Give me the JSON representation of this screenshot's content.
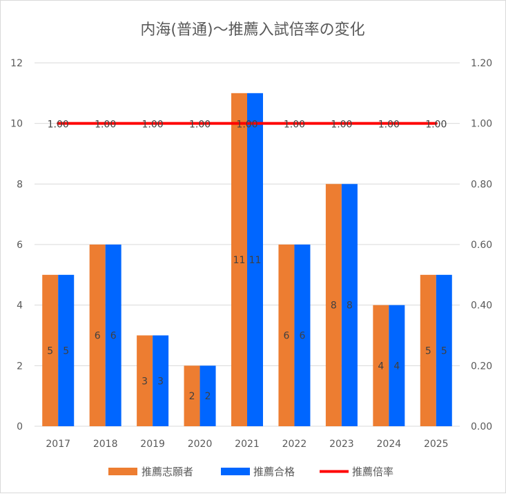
{
  "chart_data": {
    "type": "bar",
    "title": "内海(普通)〜推薦入試倍率の変化",
    "categories": [
      "2017",
      "2018",
      "2019",
      "2020",
      "2021",
      "2022",
      "2023",
      "2024",
      "2025"
    ],
    "series": [
      {
        "name": "推薦志願者",
        "kind": "bar",
        "axis": "left",
        "color": "#ED7D31",
        "values": [
          5,
          6,
          3,
          2,
          11,
          6,
          8,
          4,
          5
        ]
      },
      {
        "name": "推薦合格",
        "kind": "bar",
        "axis": "left",
        "color": "#0066FF",
        "values": [
          5,
          6,
          3,
          2,
          11,
          6,
          8,
          4,
          5
        ]
      },
      {
        "name": "推薦倍率",
        "kind": "line",
        "axis": "right",
        "color": "#FF0000",
        "values": [
          1.0,
          1.0,
          1.0,
          1.0,
          1.0,
          1.0,
          1.0,
          1.0,
          1.0
        ]
      }
    ],
    "bar_labels": [
      [
        "5",
        "6",
        "3",
        "2",
        "11",
        "6",
        "8",
        "4",
        "5"
      ],
      [
        "5",
        "6",
        "3",
        "2",
        "11",
        "6",
        "8",
        "4",
        "5"
      ]
    ],
    "line_labels": [
      "1.00",
      "1.00",
      "1.00",
      "1.00",
      "1.00",
      "1.00",
      "1.00",
      "1.00",
      "1.00"
    ],
    "ylim_left": [
      0,
      12
    ],
    "ylim_right": [
      0,
      1.2
    ],
    "yticks_left": [
      "0",
      "2",
      "4",
      "6",
      "8",
      "10",
      "12"
    ],
    "yticks_right": [
      "0.00",
      "0.20",
      "0.40",
      "0.60",
      "0.80",
      "1.00",
      "1.20"
    ],
    "grid": true,
    "legend_position": "bottom"
  }
}
